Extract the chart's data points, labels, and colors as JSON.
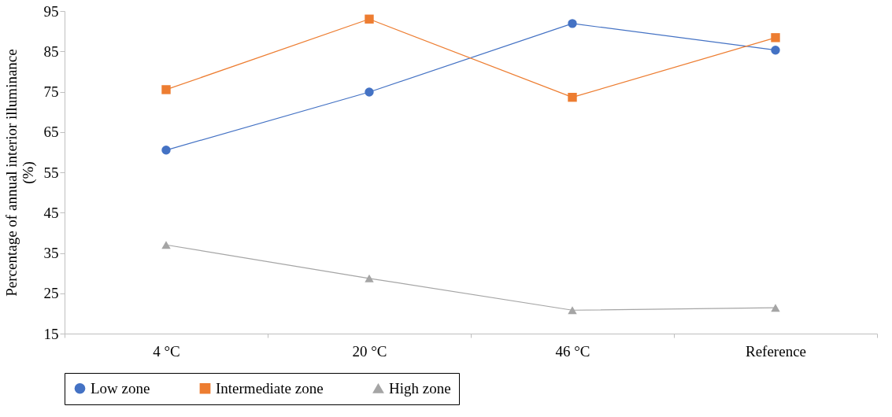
{
  "chart_data": {
    "type": "line",
    "ylabel": "Percentage of annual interior illuminance (%)",
    "categories": [
      "4 °C",
      "20 °C",
      "46 °C",
      "Reference"
    ],
    "ylim": [
      15,
      95
    ],
    "yticks": [
      15,
      25,
      35,
      45,
      55,
      65,
      75,
      85,
      95
    ],
    "grid": false,
    "legend": "bottom",
    "series": [
      {
        "name": "Low zone",
        "color": "#4472c4",
        "marker": "circle",
        "values": [
          60.5,
          74.9,
          91.9,
          85.3
        ]
      },
      {
        "name": "Intermediate zone",
        "color": "#ed7d31",
        "marker": "square",
        "values": [
          75.5,
          93.0,
          73.6,
          88.4
        ]
      },
      {
        "name": "High zone",
        "color": "#a5a5a5",
        "marker": "triangle",
        "values": [
          37.0,
          28.7,
          20.8,
          21.4
        ]
      }
    ]
  }
}
